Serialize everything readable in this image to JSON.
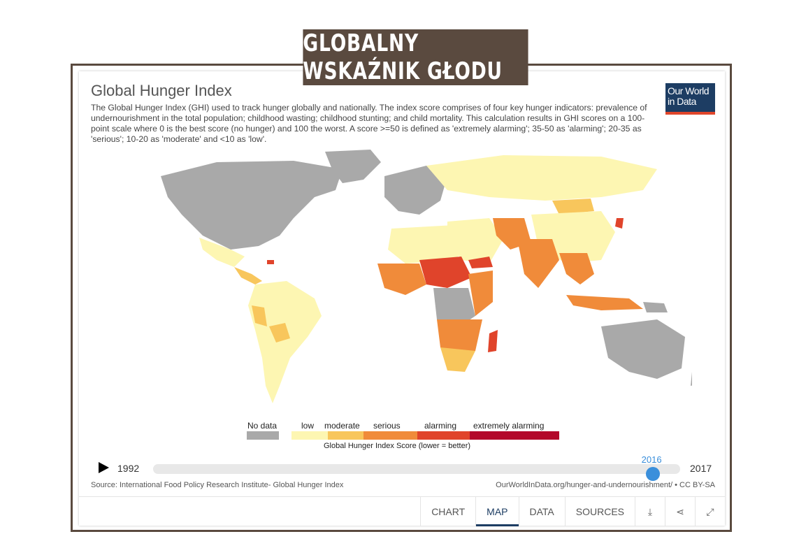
{
  "banner": {
    "text": "GLOBALNY WSKAŹNIK GŁODU"
  },
  "chart": {
    "title": "Global Hunger Index",
    "description": "The Global Hunger Index (GHI) used to track hunger globally and nationally. The index score comprises of four key hunger indicators: prevalence of undernourishment in the total population; childhood wasting; childhood stunting; and child mortality. This calculation results in GHI scores on a 100-point scale where 0 is the best score (no hunger) and 100 the worst. A score >=50 is defined as 'extremely alarming'; 35-50 as 'alarming'; 20-35 as 'serious'; 10-20 as 'moderate' and <10 as 'low'.",
    "logo": {
      "line1": "Our World",
      "line2": "in Data"
    }
  },
  "legend": {
    "no_data": {
      "label": "No data",
      "color": "#a9a9a9"
    },
    "scale_title": "Global Hunger Index Score (lower = better)",
    "categories": [
      {
        "label": "low",
        "color": "#fdf6b2"
      },
      {
        "label": "moderate",
        "color": "#f8c65c"
      },
      {
        "label": "serious",
        "color": "#f08b3a"
      },
      {
        "label": "alarming",
        "color": "#e0442b"
      },
      {
        "label": "extremely alarming",
        "color": "#b3082a"
      }
    ]
  },
  "timeline": {
    "start_year": "1992",
    "end_year": "2017",
    "current_year": "2016",
    "position": 0.96
  },
  "source": {
    "left": "Source: International Food Policy Research Institute- Global Hunger Index",
    "right": "OurWorldInData.org/hunger-and-undernourishment/ • CC BY-SA"
  },
  "tabs": [
    {
      "label": "CHART",
      "active": false
    },
    {
      "label": "MAP",
      "active": true
    },
    {
      "label": "DATA",
      "active": false
    },
    {
      "label": "SOURCES",
      "active": false
    }
  ],
  "icons": [
    "download-icon",
    "share-icon",
    "expand-icon"
  ]
}
